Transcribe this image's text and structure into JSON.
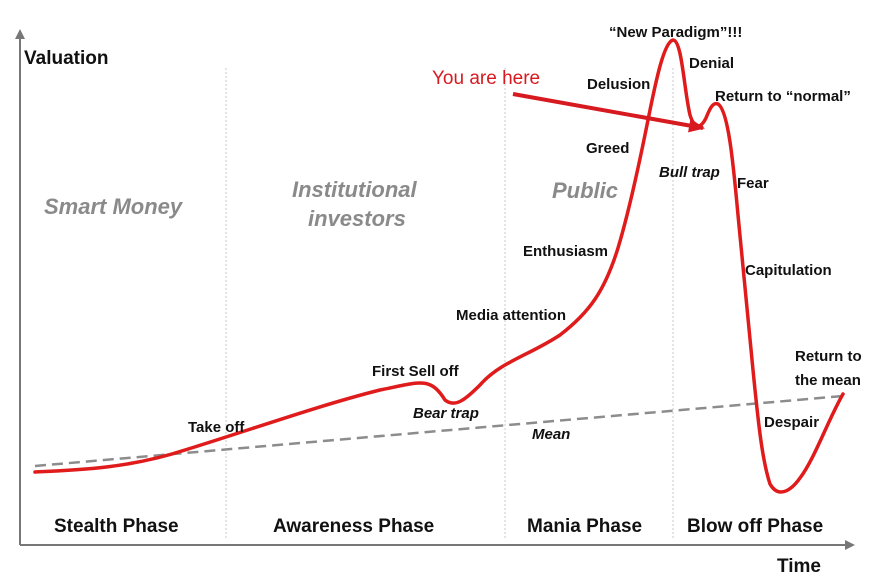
{
  "axes": {
    "y_label": "Valuation",
    "x_label": "Time"
  },
  "investor_groups": {
    "smart_money": "Smart Money",
    "institutional_line1": "Institutional",
    "institutional_line2": "investors",
    "public": "Public"
  },
  "phases": {
    "stealth": "Stealth Phase",
    "awareness": "Awareness Phase",
    "mania": "Mania Phase",
    "blow_off": "Blow off Phase"
  },
  "annotations": {
    "take_off": "Take off",
    "first_sell_off": "First Sell off",
    "bear_trap": "Bear trap",
    "media_attention": "Media attention",
    "enthusiasm": "Enthusiasm",
    "greed": "Greed",
    "delusion": "Delusion",
    "new_paradigm": "“New Paradigm”!!!",
    "denial": "Denial",
    "bull_trap": "Bull trap",
    "return_to_normal": "Return to “normal”",
    "fear": "Fear",
    "capitulation": "Capitulation",
    "return_to_mean_line1": "Return to",
    "return_to_mean_line2": "the mean",
    "despair": "Despair",
    "mean": "Mean"
  },
  "callout": {
    "text": "You are here"
  },
  "colors": {
    "curve": "#e01b1b",
    "mean_line": "#8c8c8c",
    "callout": "#d71920",
    "group_text": "#8a8a8a",
    "axis": "#777777",
    "divider": "#c8c8c8"
  }
}
